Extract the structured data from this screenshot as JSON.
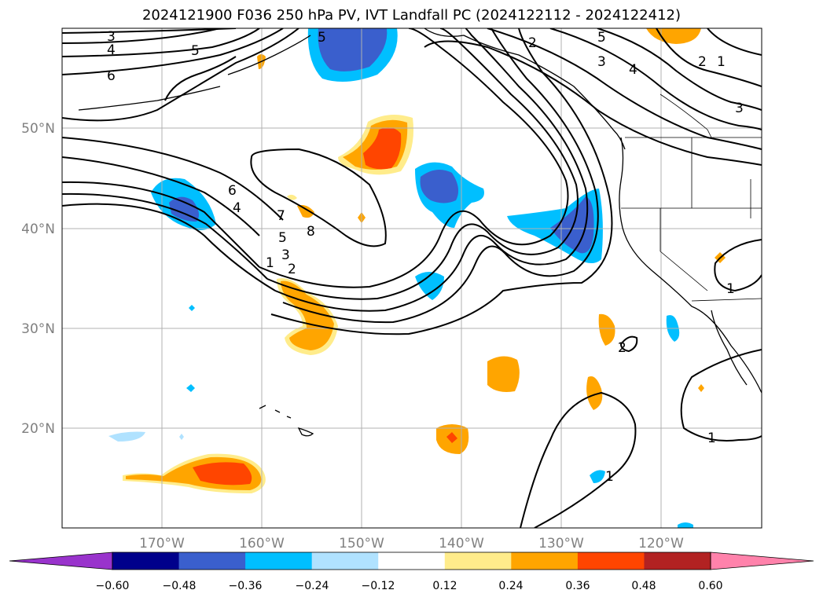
{
  "title": "2024121900 F036 250 hPa PV, IVT Landfall PC (2024122112 - 2024122412)",
  "lat_labels": [
    "50°N",
    "40°N",
    "30°N",
    "20°N"
  ],
  "lon_labels": [
    "170°W",
    "160°W",
    "150°W",
    "140°W",
    "130°W",
    "120°W"
  ],
  "colorbar": {
    "ticks": [
      "−0.60",
      "−0.48",
      "−0.36",
      "−0.24",
      "−0.12",
      "0.12",
      "0.24",
      "0.36",
      "0.48",
      "0.60"
    ],
    "colors": [
      "#9933cc",
      "#00008b",
      "#3a5fcd",
      "#00bfff",
      "#b0e2ff",
      "#ffffff",
      "#ffec8b",
      "#ffa500",
      "#ff4500",
      "#b22222",
      "#ff82ab"
    ]
  },
  "contour_labels": [
    "3",
    "4",
    "5",
    "6",
    "5",
    "2",
    "5",
    "3",
    "4",
    "2",
    "1",
    "3",
    "6",
    "4",
    "7",
    "8",
    "5",
    "3",
    "2",
    "1",
    "1",
    "2",
    "1",
    "1"
  ],
  "colors": {
    "ivt_negative": "#3a5fcd",
    "ivt_light_negative": "#00bfff",
    "ivt_positive": "#ffa500",
    "ivt_strong_positive": "#ff4500",
    "grid": "#b0b0b0",
    "contour": "#000000"
  }
}
